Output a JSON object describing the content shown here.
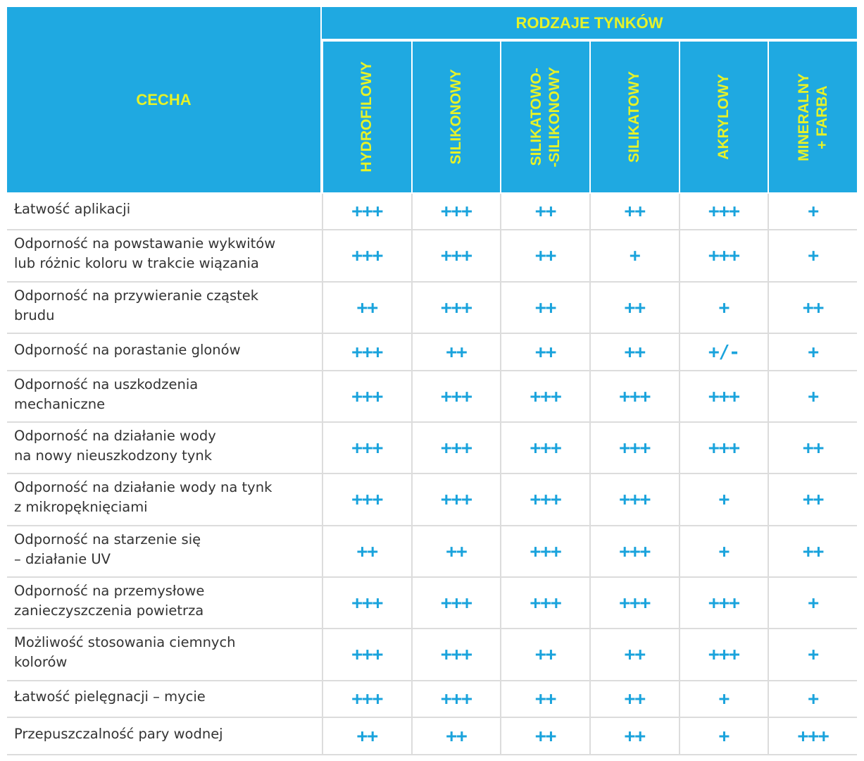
{
  "header": {
    "feature": "CECHA",
    "group": "RODZAJE TYNKÓW",
    "columns": [
      [
        "HYDROFILOWY"
      ],
      [
        "SILIKONOWY"
      ],
      [
        "SILIKATOWO-",
        "-SILIKONOWY"
      ],
      [
        "SILIKATOWY"
      ],
      [
        "AKRYLOWY"
      ],
      [
        "MINERALNY",
        "+ FARBA"
      ]
    ]
  },
  "table": {
    "rows": [
      {
        "label": [
          "Łatwość aplikacji"
        ],
        "values": [
          "+++",
          "+++",
          "++",
          "++",
          "+++",
          "+"
        ]
      },
      {
        "label": [
          "Odporność na powstawanie wykwitów",
          "lub różnic koloru w trakcie wiązania"
        ],
        "values": [
          "+++",
          "+++",
          "++",
          "+",
          "+++",
          "+"
        ]
      },
      {
        "label": [
          "Odporność na przywieranie cząstek",
          "brudu"
        ],
        "values": [
          "++",
          "+++",
          "++",
          "++",
          "+",
          "++"
        ]
      },
      {
        "label": [
          "Odporność na porastanie glonów"
        ],
        "values": [
          "+++",
          "++",
          "++",
          "++",
          "+/-",
          "+"
        ]
      },
      {
        "label": [
          "Odporność na uszkodzenia",
          "mechaniczne"
        ],
        "values": [
          "+++",
          "+++",
          "+++",
          "+++",
          "+++",
          "+"
        ]
      },
      {
        "label": [
          "Odporność na działanie wody",
          "na nowy nieuszkodzony tynk"
        ],
        "values": [
          "+++",
          "+++",
          "+++",
          "+++",
          "+++",
          "++"
        ]
      },
      {
        "label": [
          "Odporność na działanie wody na tynk",
          "z mikropęknięciami"
        ],
        "values": [
          "+++",
          "+++",
          "+++",
          "+++",
          "+",
          "++"
        ]
      },
      {
        "label": [
          "Odporność na starzenie się",
          "– działanie UV"
        ],
        "values": [
          "++",
          "++",
          "+++",
          "+++",
          "+",
          "++"
        ]
      },
      {
        "label": [
          "Odporność na przemysłowe",
          "zanieczyszczenia powietrza"
        ],
        "values": [
          "+++",
          "+++",
          "+++",
          "+++",
          "+++",
          "+"
        ]
      },
      {
        "label": [
          "Możliwość stosowania ciemnych",
          "kolorów"
        ],
        "values": [
          "+++",
          "+++",
          "++",
          "++",
          "+++",
          "+"
        ]
      },
      {
        "label": [
          "Łatwość pielęgnacji – mycie"
        ],
        "values": [
          "+++",
          "+++",
          "++",
          "++",
          "+",
          "+"
        ]
      },
      {
        "label": [
          "Przepuszczalność pary wodnej"
        ],
        "values": [
          "++",
          "++",
          "++",
          "++",
          "+",
          "+++"
        ]
      }
    ]
  }
}
